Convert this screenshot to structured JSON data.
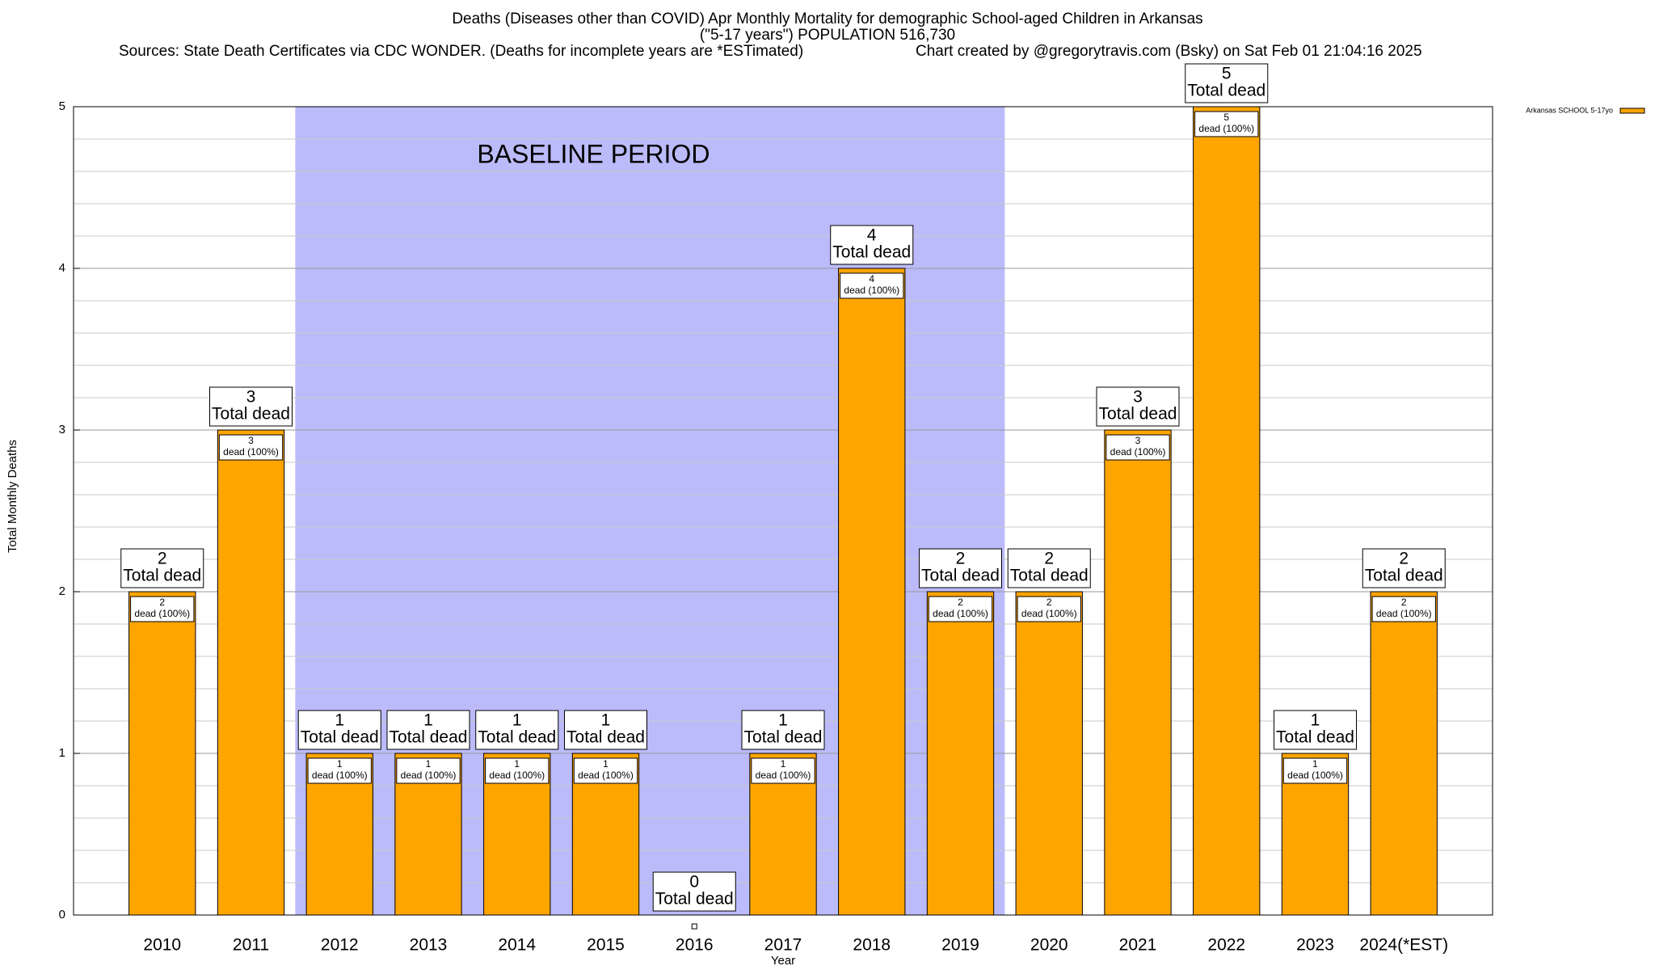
{
  "chart_data": {
    "type": "bar",
    "title": "Deaths (Diseases other than COVID) Apr Monthly Mortality for demographic School-aged Children in Arkansas",
    "subtitle": "(\"5-17 years\") POPULATION 516,730",
    "sources": "Sources: State Death Certificates via CDC WONDER. (Deaths for incomplete years are *ESTimated)",
    "credit": "Chart created by @gregorytravis.com (Bsky) on Sat Feb 01 21:04:16 2025",
    "x_label": "Year",
    "y_label": "Total Monthly Deaths",
    "categories": [
      "2010",
      "2011",
      "2012",
      "2013",
      "2014",
      "2015",
      "2016",
      "2017",
      "2018",
      "2019",
      "2020",
      "2021",
      "2022",
      "2023",
      "2024(*EST)"
    ],
    "series": [
      {
        "name": "Arkansas SCHOOL 5-17yo",
        "color": "#ffa500",
        "values": [
          2,
          3,
          1,
          1,
          1,
          1,
          0,
          1,
          4,
          2,
          2,
          3,
          5,
          1,
          2
        ]
      }
    ],
    "total_label": "Total dead",
    "share_label": "dead (100%)",
    "baseline_period": {
      "label": "BASELINE PERIOD",
      "start": "2012",
      "end": "2019",
      "color": "#bbbbfa"
    },
    "ylim": [
      0,
      5
    ],
    "yticks": [
      0,
      1,
      2,
      3,
      4,
      5
    ],
    "minor_yticks": [
      0.2,
      0.4,
      0.6,
      0.8,
      1.2,
      1.4,
      1.6,
      1.8,
      2.2,
      2.4,
      2.6,
      2.8,
      3.2,
      3.4,
      3.6,
      3.8,
      4.2,
      4.4,
      4.6,
      4.8
    ],
    "grid": true,
    "legend": "top-right"
  }
}
